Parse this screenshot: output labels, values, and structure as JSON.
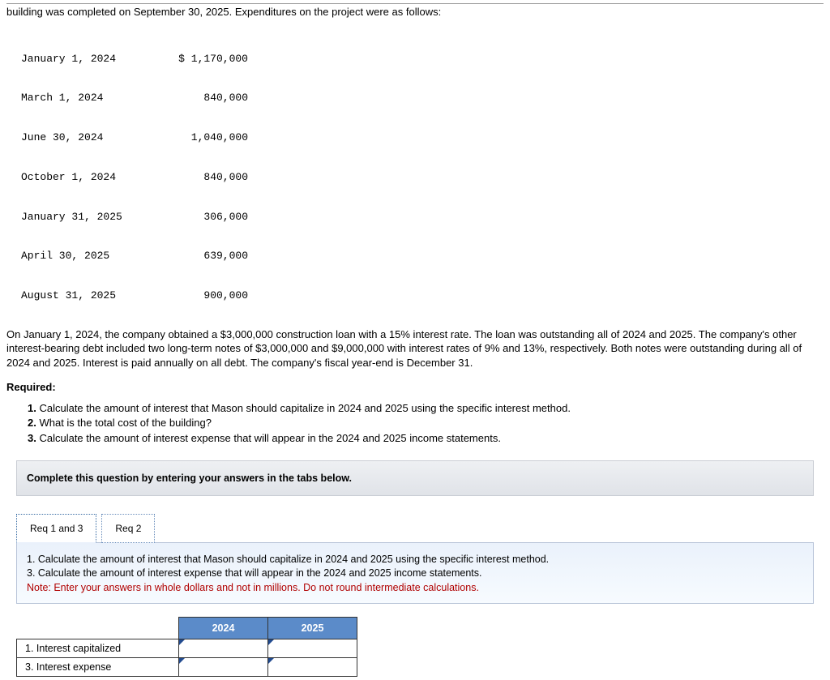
{
  "intro_line": "building was completed on September 30, 2025. Expenditures on the project were as follows:",
  "expenditures": [
    {
      "date": "January 1, 2024",
      "amount": "$ 1,170,000"
    },
    {
      "date": "March 1, 2024",
      "amount": "840,000"
    },
    {
      "date": "June 30, 2024",
      "amount": "1,040,000"
    },
    {
      "date": "October 1, 2024",
      "amount": "840,000"
    },
    {
      "date": "January 31, 2025",
      "amount": "306,000"
    },
    {
      "date": "April 30, 2025",
      "amount": "639,000"
    },
    {
      "date": "August 31, 2025",
      "amount": "900,000"
    }
  ],
  "paragraph": "On January 1, 2024, the company obtained a $3,000,000 construction loan with a 15% interest rate. The loan was outstanding all of 2024 and 2025. The company's other interest-bearing debt included two long-term notes of $3,000,000 and $9,000,000 with interest rates of 9% and 13%, respectively. Both notes were outstanding during all of 2024 and 2025. Interest is paid annually on all debt. The company's fiscal year-end is December 31.",
  "required_label": "Required:",
  "requirements": [
    {
      "n": "1.",
      "text": "Calculate the amount of interest that Mason should capitalize in 2024 and 2025 using the specific interest method."
    },
    {
      "n": "2.",
      "text": "What is the total cost of the building?"
    },
    {
      "n": "3.",
      "text": "Calculate the amount of interest expense that will appear in the 2024 and 2025 income statements."
    }
  ],
  "complete_bar": "Complete this question by entering your answers in the tabs below.",
  "tabs": {
    "active": "Req 1 and 3",
    "inactive": "Req 2"
  },
  "panel": {
    "line1": "1. Calculate the amount of interest that Mason should capitalize in 2024 and 2025 using the specific interest method.",
    "line2": "3. Calculate the amount of interest expense that will appear in the 2024 and 2025 income statements.",
    "note": "Note: Enter your answers in whole dollars and not in millions. Do not round intermediate calculations."
  },
  "answer_table": {
    "col1": "2024",
    "col2": "2025",
    "row1": "1. Interest capitalized",
    "row2": "3. Interest expense"
  },
  "colors": {
    "header_bg": "#5b8bc9",
    "note_color": "#b00000",
    "marker_color": "#224b8f"
  }
}
